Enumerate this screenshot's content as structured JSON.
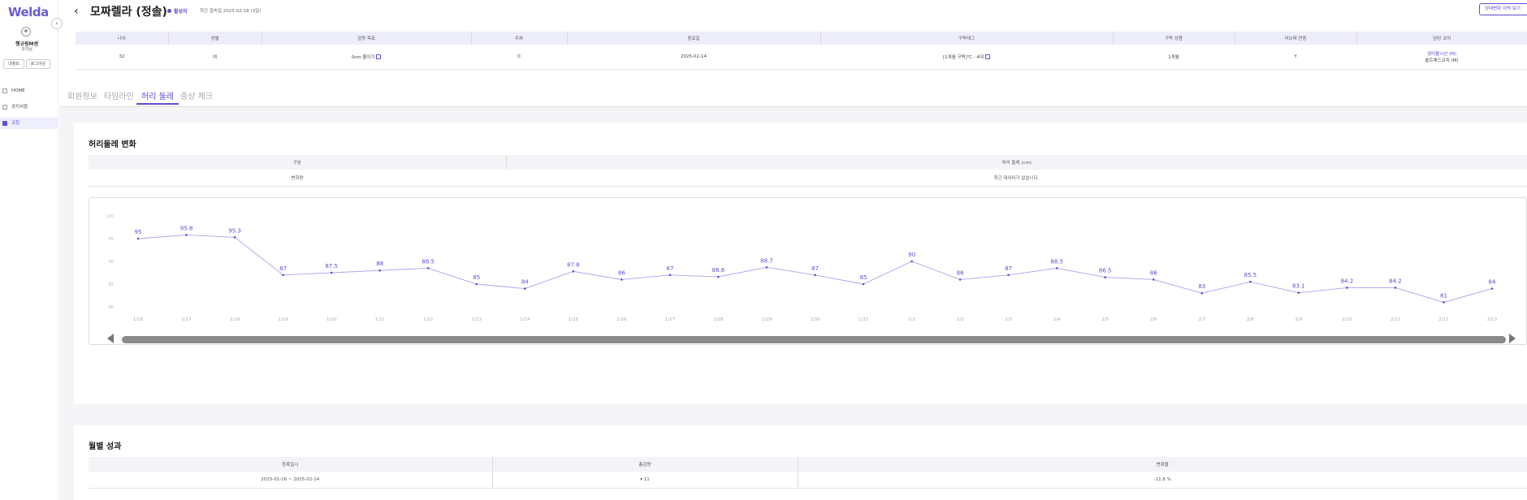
{
  "sidebar": {
    "logo": "Welda",
    "collapse_icon": "‹",
    "user_name": "행규원M센",
    "user_role": "코치님",
    "btn_myinfo": "내정보",
    "btn_logout": "로그아웃",
    "nav": [
      {
        "label": "HOME"
      },
      {
        "label": "공지사항"
      },
      {
        "label": "코칭"
      }
    ]
  },
  "header": {
    "back_icon": "‹",
    "title": "모짜렐라 (정솔)",
    "status": "활성자",
    "last_login": "최근 접속일 2025-02-16 (3일)",
    "history_button": "상태변화 이력 보기"
  },
  "info_table": {
    "headers": [
      "나이",
      "성별",
      "감량 목표",
      "주차",
      "종료일",
      "구독태그",
      "구독 상품",
      "리브레 연동",
      "담당 코치"
    ],
    "row": {
      "age": "32",
      "gender": "여",
      "goal": "0cm 줄이기",
      "week": "0",
      "end_date": "2025-02-14",
      "tag": "[1개월 구독]℃ - 4대",
      "product": "1개월",
      "libre": "Y",
      "coach_1": "생리활시선 (M)",
      "coach_2": "솔트레드코치 (M)"
    }
  },
  "tabs": [
    {
      "label": "회원정보"
    },
    {
      "label": "타임라인"
    },
    {
      "label": "허리 둘레"
    },
    {
      "label": "증상 체크"
    }
  ],
  "waist_card": {
    "title": "허리둘레 변화",
    "table_headers": [
      "구분",
      "허리 둘레 (cm)"
    ],
    "row_label": "변화량",
    "row_value": "최근 데이터가 없습니다."
  },
  "chart_data": {
    "type": "line",
    "color": "#a9a3e8",
    "point_color": "#5a4fd0",
    "label_color": "#5a4fd0",
    "x": [
      "1/16",
      "1/17",
      "1/18",
      "1/19",
      "1/20",
      "1/21",
      "1/22",
      "1/23",
      "1/24",
      "1/25",
      "1/26",
      "1/27",
      "1/28",
      "1/29",
      "1/30",
      "1/31",
      "2/1",
      "2/2",
      "2/3",
      "2/4",
      "2/5",
      "2/6",
      "2/7",
      "2/8",
      "2/9",
      "2/10",
      "2/11",
      "2/12",
      "2/13"
    ],
    "values": [
      95,
      95.8,
      95.3,
      87,
      87.5,
      88,
      88.5,
      85,
      84,
      87.8,
      86,
      87,
      86.6,
      88.7,
      87,
      85,
      90,
      86,
      87,
      88.5,
      86.5,
      86,
      83,
      85.5,
      83.1,
      84.2,
      84.2,
      81,
      84
    ],
    "y_ticks": [
      "100",
      "95",
      "90",
      "85",
      "80"
    ],
    "ylim": [
      80,
      100
    ],
    "grid": false
  },
  "perf_card": {
    "title": "월별 성과",
    "headers": [
      "등록일시",
      "총감량",
      "변화율"
    ],
    "row": {
      "period": "2025-01-16 ~ 2025-02-14",
      "total": "▾ 11",
      "rate": "-11.6 %"
    }
  }
}
